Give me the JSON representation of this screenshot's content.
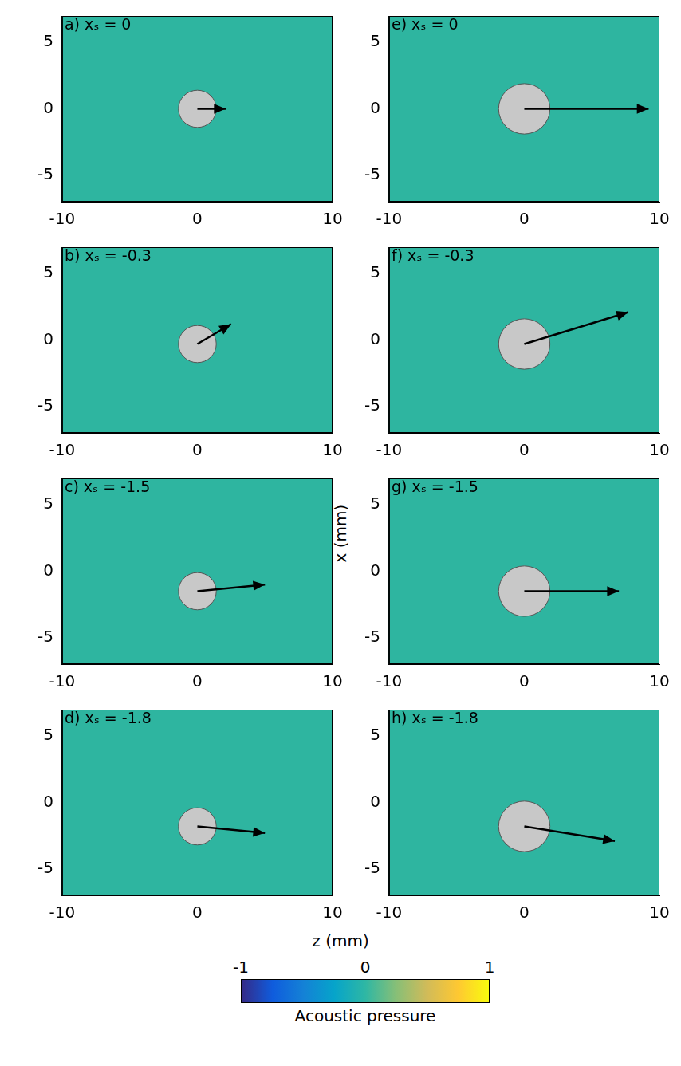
{
  "x_label": "z (mm)",
  "y_label": "x (mm)",
  "colorbar": {
    "label": "Acoustic pressure",
    "range": [
      -1,
      1
    ],
    "ticks": [
      -1,
      0,
      1
    ]
  },
  "chart_data": [
    {
      "type": "scatter",
      "title": "a) xₛ = 0",
      "xlim": [
        -10,
        10
      ],
      "xticks": [
        -10,
        0,
        10
      ],
      "ylim": [
        -7,
        7
      ],
      "yticks": [
        -5,
        0,
        5
      ],
      "grid": false,
      "sphere": {
        "z": 0,
        "x": 0,
        "radius": 1.4
      },
      "arrow": {
        "z": [
          0,
          2.1
        ],
        "x": [
          0,
          0
        ]
      }
    },
    {
      "type": "scatter",
      "title": "b) xₛ = -0.3",
      "xlim": [
        -10,
        10
      ],
      "xticks": [
        -10,
        0,
        10
      ],
      "ylim": [
        -7,
        7
      ],
      "yticks": [
        -5,
        0,
        5
      ],
      "grid": false,
      "sphere": {
        "z": 0,
        "x": -0.3,
        "radius": 1.4
      },
      "arrow": {
        "z": [
          0,
          2.5
        ],
        "x": [
          -0.3,
          1.2
        ]
      }
    },
    {
      "type": "scatter",
      "title": "c) xₛ = -1.5",
      "xlim": [
        -10,
        10
      ],
      "xticks": [
        -10,
        0,
        10
      ],
      "ylim": [
        -7,
        7
      ],
      "yticks": [
        -5,
        0,
        5
      ],
      "grid": false,
      "sphere": {
        "z": 0,
        "x": -1.5,
        "radius": 1.4
      },
      "arrow": {
        "z": [
          0,
          5.0
        ],
        "x": [
          -1.5,
          -1.0
        ]
      }
    },
    {
      "type": "scatter",
      "title": "d) xₛ = -1.8",
      "xlim": [
        -10,
        10
      ],
      "xticks": [
        -10,
        0,
        10
      ],
      "ylim": [
        -7,
        7
      ],
      "yticks": [
        -5,
        0,
        5
      ],
      "grid": false,
      "sphere": {
        "z": 0,
        "x": -1.8,
        "radius": 1.4
      },
      "arrow": {
        "z": [
          0,
          5.0
        ],
        "x": [
          -1.8,
          -2.3
        ]
      }
    },
    {
      "type": "scatter",
      "title": "e) xₛ = 0",
      "xlim": [
        -10,
        10
      ],
      "xticks": [
        -10,
        0,
        10
      ],
      "ylim": [
        -7,
        7
      ],
      "yticks": [
        -5,
        0,
        5
      ],
      "grid": false,
      "sphere": {
        "z": 0,
        "x": 0,
        "radius": 1.9
      },
      "arrow": {
        "z": [
          0,
          9.2
        ],
        "x": [
          0,
          0
        ]
      }
    },
    {
      "type": "scatter",
      "title": "f) xₛ = -0.3",
      "xlim": [
        -10,
        10
      ],
      "xticks": [
        -10,
        0,
        10
      ],
      "ylim": [
        -7,
        7
      ],
      "yticks": [
        -5,
        0,
        5
      ],
      "grid": false,
      "sphere": {
        "z": 0,
        "x": -0.3,
        "radius": 1.9
      },
      "arrow": {
        "z": [
          0,
          7.7
        ],
        "x": [
          -0.3,
          2.1
        ]
      }
    },
    {
      "type": "scatter",
      "title": "g) xₛ = -1.5",
      "xlim": [
        -10,
        10
      ],
      "xticks": [
        -10,
        0,
        10
      ],
      "ylim": [
        -7,
        7
      ],
      "yticks": [
        -5,
        0,
        5
      ],
      "grid": false,
      "sphere": {
        "z": 0,
        "x": -1.5,
        "radius": 1.9
      },
      "arrow": {
        "z": [
          0,
          7.0
        ],
        "x": [
          -1.5,
          -1.5
        ]
      }
    },
    {
      "type": "scatter",
      "title": "h) xₛ = -1.8",
      "xlim": [
        -10,
        10
      ],
      "xticks": [
        -10,
        0,
        10
      ],
      "ylim": [
        -7,
        7
      ],
      "yticks": [
        -5,
        0,
        5
      ],
      "grid": false,
      "sphere": {
        "z": 0,
        "x": -1.8,
        "radius": 1.9
      },
      "arrow": {
        "z": [
          0,
          6.7
        ],
        "x": [
          -1.8,
          -2.9
        ]
      }
    }
  ]
}
